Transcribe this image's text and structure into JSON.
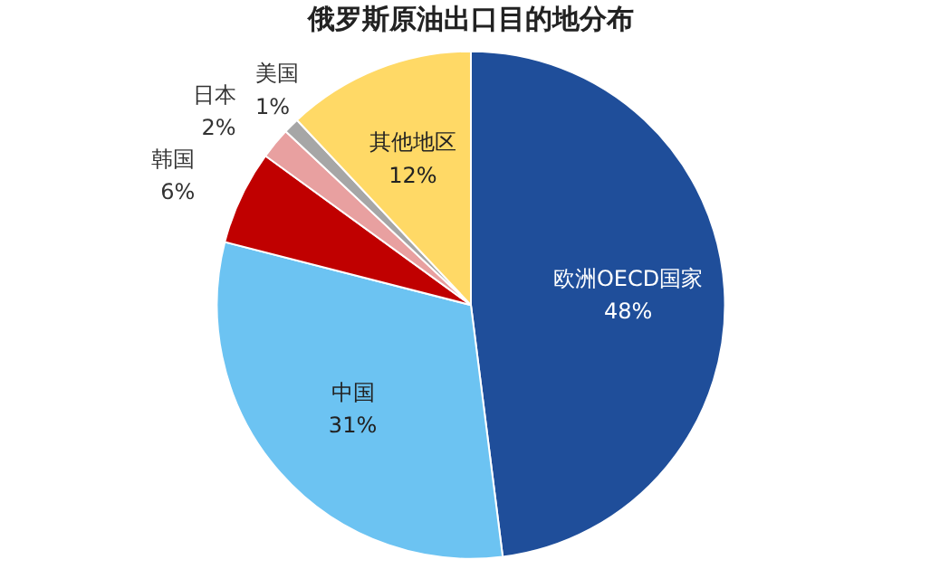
{
  "chart_data": {
    "type": "pie",
    "title": "俄罗斯原油出口目的地分布",
    "categories": [
      "欧洲OECD国家",
      "中国",
      "韩国",
      "日本",
      "美国",
      "其他地区"
    ],
    "values": [
      48,
      31,
      6,
      2,
      1,
      12
    ],
    "value_labels": [
      "48%",
      "31%",
      "6%",
      "2%",
      "1%",
      "12%"
    ],
    "colors": [
      "#1f4e9a",
      "#6cc3f2",
      "#c00000",
      "#e8a0a0",
      "#a6a6a6",
      "#ffd966"
    ]
  }
}
